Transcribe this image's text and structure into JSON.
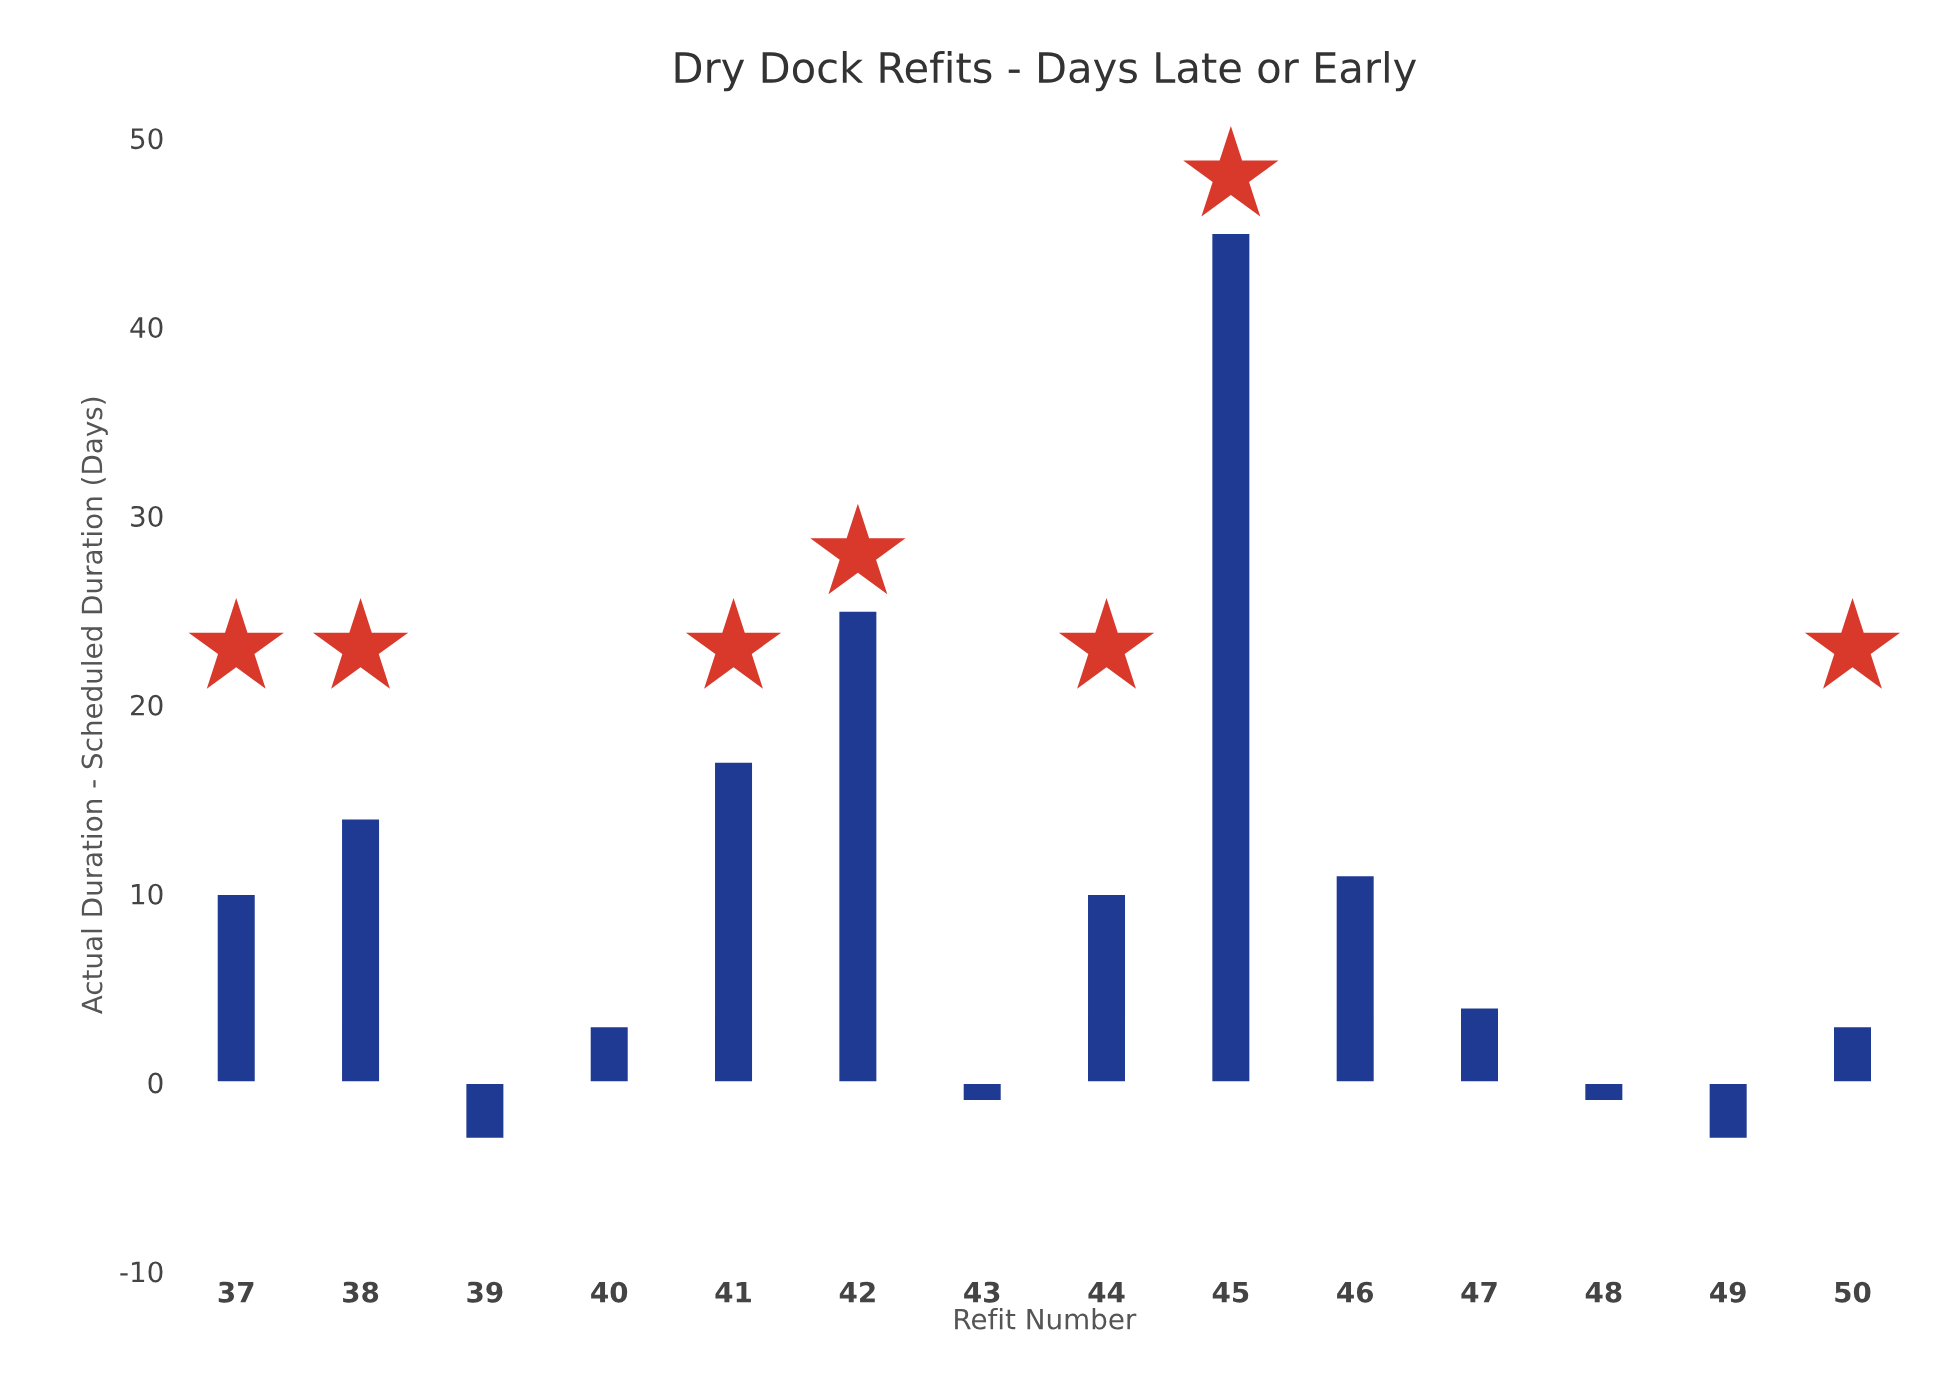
{
  "chart_data": {
    "type": "bar",
    "title": "Dry Dock Refits - Days Late or Early",
    "xlabel": "Refit Number",
    "ylabel": "Actual Duration - Scheduled Duration (Days)",
    "categories": [
      "37",
      "38",
      "39",
      "40",
      "41",
      "42",
      "43",
      "44",
      "45",
      "46",
      "47",
      "48",
      "49",
      "50"
    ],
    "series": [
      {
        "color": "#1f3a93",
        "values": [
          10,
          14,
          -3,
          3,
          17,
          25,
          -1,
          10,
          45,
          11,
          4,
          -1,
          -3,
          3
        ]
      },
      {
        "type": "scatter",
        "color": "#d9392b",
        "marker": "star",
        "x": [
          "37",
          "38",
          "41",
          "42",
          "44",
          "45",
          "50"
        ],
        "values": [
          23,
          23,
          23,
          28,
          23,
          48,
          23
        ]
      }
    ],
    "ylim": [
      -10,
      50
    ],
    "yticks": [
      -10,
      0,
      10,
      20,
      30,
      40,
      50
    ],
    "grid": false,
    "legend": false
  }
}
